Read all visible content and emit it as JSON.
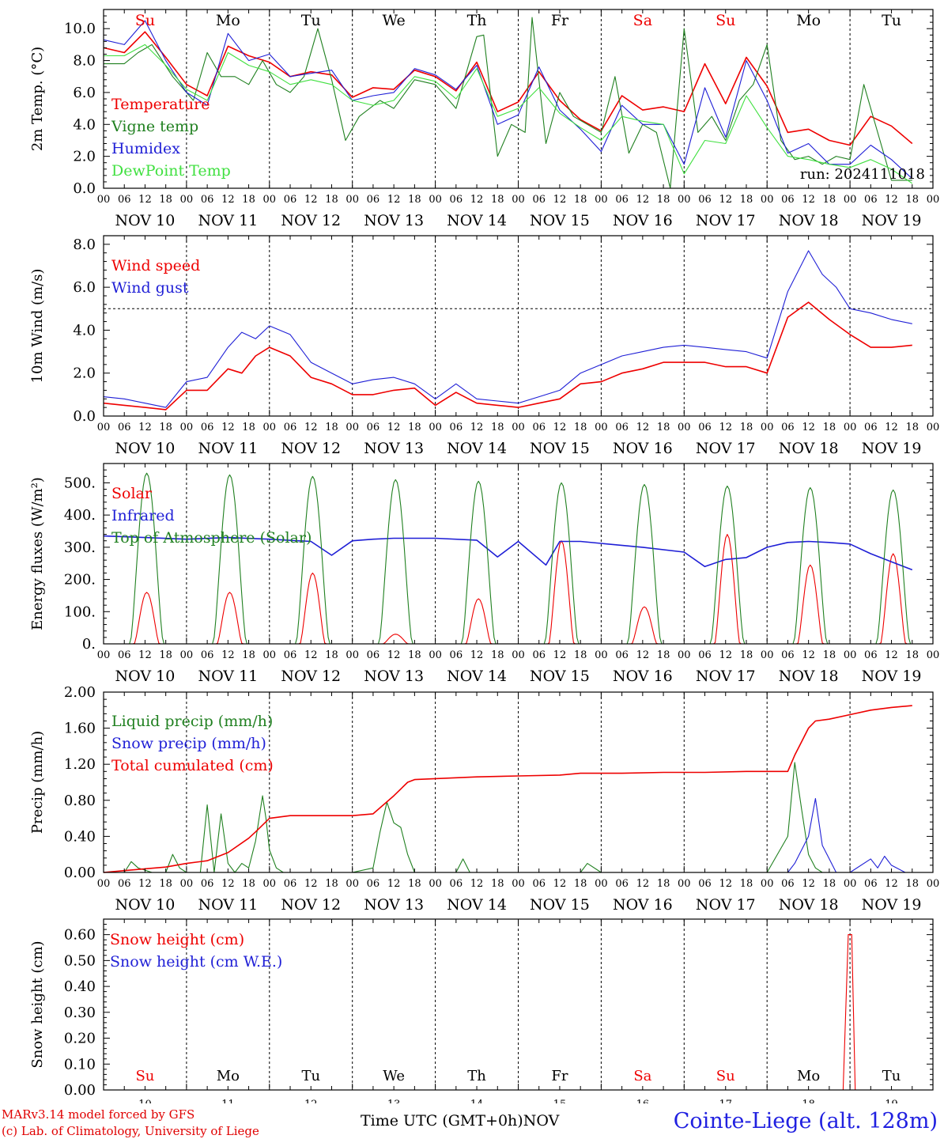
{
  "chart_data": [
    {
      "type": "line",
      "ylabel": "2m Temp. (°C)",
      "ylim": [
        0,
        11.2
      ],
      "yticks": [
        "0.0",
        "2.0",
        "4.0",
        "6.0",
        "8.0",
        "10.0"
      ],
      "x_unit": "hours since NOV 10 00 UTC",
      "annotation": "run: 2024111018",
      "series": [
        {
          "name": "Temperature",
          "color": "#ee0000",
          "x": [
            0,
            6,
            12,
            18,
            24,
            30,
            36,
            42,
            48,
            54,
            60,
            66,
            72,
            78,
            84,
            90,
            96,
            102,
            108,
            114,
            120,
            126,
            132,
            138,
            144,
            150,
            156,
            162,
            168,
            174,
            180,
            186,
            192,
            198,
            204,
            210,
            216,
            222,
            228,
            234
          ],
          "values": [
            8.8,
            8.5,
            9.8,
            8.2,
            6.5,
            5.8,
            8.9,
            8.3,
            7.9,
            7.0,
            7.3,
            7.1,
            5.7,
            6.3,
            6.2,
            7.4,
            7.0,
            6.1,
            7.9,
            4.8,
            5.4,
            7.3,
            5.5,
            4.3,
            3.6,
            5.8,
            4.9,
            5.1,
            4.8,
            7.8,
            5.3,
            8.2,
            6.4,
            3.5,
            3.7,
            3.0,
            2.7,
            4.5,
            3.9,
            2.8
          ]
        },
        {
          "name": "Vigne temp",
          "color": "#208020",
          "x": [
            0,
            6,
            10,
            14,
            20,
            26,
            30,
            34,
            38,
            42,
            46,
            50,
            54,
            58,
            62,
            66,
            70,
            74,
            80,
            84,
            90,
            96,
            102,
            108,
            110,
            114,
            118,
            122,
            124,
            128,
            132,
            136,
            140,
            144,
            148,
            152,
            156,
            160,
            164,
            168,
            172,
            176,
            180,
            184,
            188,
            192,
            196,
            200,
            204,
            208,
            212,
            216,
            220,
            224,
            228,
            234
          ],
          "values": [
            7.8,
            7.8,
            8.5,
            9.0,
            7.0,
            5.5,
            8.5,
            7.0,
            7.0,
            6.5,
            8.0,
            6.5,
            6.0,
            7.0,
            10.0,
            6.8,
            3.0,
            4.5,
            5.5,
            5.0,
            6.8,
            6.5,
            5.0,
            9.5,
            9.6,
            2.0,
            4.0,
            3.5,
            10.7,
            2.8,
            6.0,
            4.5,
            4.0,
            3.5,
            7.0,
            2.2,
            4.0,
            3.5,
            0.0,
            10.0,
            3.5,
            4.5,
            3.0,
            5.5,
            6.5,
            9.0,
            3.0,
            1.8,
            2.0,
            1.5,
            2.0,
            1.8,
            6.5,
            3.5,
            0.5,
            0.5
          ]
        },
        {
          "name": "Humidex",
          "color": "#1f1fd6",
          "x": [
            0,
            6,
            12,
            18,
            24,
            30,
            36,
            42,
            48,
            54,
            60,
            66,
            72,
            78,
            84,
            90,
            96,
            102,
            108,
            114,
            120,
            126,
            132,
            138,
            144,
            150,
            156,
            162,
            168,
            174,
            180,
            186,
            192,
            198,
            204,
            210,
            216,
            222,
            228,
            234
          ],
          "values": [
            9.3,
            9.0,
            10.5,
            8.0,
            6.0,
            5.2,
            9.7,
            8.0,
            8.4,
            7.0,
            7.2,
            7.4,
            5.5,
            5.8,
            6.0,
            7.5,
            7.1,
            6.2,
            7.7,
            4.0,
            4.6,
            7.6,
            4.9,
            3.7,
            2.3,
            5.2,
            4.0,
            4.0,
            1.5,
            6.3,
            3.2,
            8.0,
            5.5,
            2.2,
            2.8,
            1.5,
            1.5,
            2.7,
            1.8,
            0.6
          ]
        },
        {
          "name": "DewPoint Temp",
          "color": "#40e040",
          "x": [
            0,
            6,
            12,
            18,
            24,
            30,
            36,
            42,
            48,
            54,
            60,
            66,
            72,
            78,
            84,
            90,
            96,
            102,
            108,
            114,
            120,
            126,
            132,
            138,
            144,
            150,
            156,
            162,
            168,
            174,
            180,
            186,
            192,
            198,
            204,
            210,
            216,
            222,
            228,
            234
          ],
          "values": [
            8.3,
            8.3,
            9.0,
            7.7,
            6.2,
            5.5,
            8.5,
            7.7,
            7.3,
            6.5,
            6.8,
            6.5,
            5.5,
            5.2,
            5.5,
            7.0,
            6.7,
            5.6,
            7.5,
            4.5,
            5.0,
            6.3,
            4.7,
            3.8,
            3.0,
            4.5,
            4.2,
            4.0,
            0.9,
            3.0,
            2.8,
            5.8,
            3.8,
            2.0,
            1.8,
            1.5,
            1.3,
            1.8,
            1.2,
            0.3
          ]
        }
      ]
    },
    {
      "type": "line",
      "ylabel": "10m Wind (m/s)",
      "ylim": [
        0,
        8.4
      ],
      "yticks": [
        "0.0",
        "2.0",
        "4.0",
        "6.0",
        "8.0"
      ],
      "x_unit": "hours since NOV 10 00 UTC",
      "reference_line": 5.0,
      "series": [
        {
          "name": "Wind speed",
          "color": "#ee0000",
          "x": [
            0,
            6,
            12,
            18,
            24,
            30,
            36,
            40,
            44,
            48,
            54,
            60,
            66,
            72,
            78,
            84,
            90,
            96,
            102,
            108,
            114,
            120,
            126,
            132,
            138,
            144,
            150,
            156,
            162,
            168,
            174,
            180,
            186,
            192,
            198,
            204,
            210,
            216,
            222,
            228,
            234
          ],
          "values": [
            0.6,
            0.5,
            0.4,
            0.3,
            1.2,
            1.2,
            2.2,
            2.0,
            2.8,
            3.2,
            2.8,
            1.8,
            1.5,
            1.0,
            1.0,
            1.2,
            1.3,
            0.5,
            1.1,
            0.6,
            0.5,
            0.4,
            0.6,
            0.8,
            1.5,
            1.6,
            2.0,
            2.2,
            2.5,
            2.5,
            2.5,
            2.3,
            2.3,
            2.0,
            4.6,
            5.3,
            4.5,
            3.8,
            3.2,
            3.2,
            3.3
          ]
        },
        {
          "name": "Wind gust",
          "color": "#1f1fd6",
          "x": [
            0,
            6,
            12,
            18,
            24,
            30,
            36,
            40,
            44,
            48,
            54,
            60,
            66,
            72,
            78,
            84,
            90,
            96,
            102,
            108,
            114,
            120,
            126,
            132,
            138,
            144,
            150,
            156,
            162,
            168,
            174,
            180,
            186,
            192,
            198,
            204,
            208,
            212,
            216,
            222,
            228,
            234
          ],
          "values": [
            0.9,
            0.8,
            0.6,
            0.4,
            1.6,
            1.8,
            3.2,
            3.9,
            3.6,
            4.2,
            3.8,
            2.5,
            2.0,
            1.5,
            1.7,
            1.8,
            1.5,
            0.8,
            1.5,
            0.8,
            0.7,
            0.6,
            0.9,
            1.2,
            2.0,
            2.4,
            2.8,
            3.0,
            3.2,
            3.3,
            3.2,
            3.1,
            3.0,
            2.7,
            5.8,
            7.7,
            6.6,
            6.0,
            5.0,
            4.8,
            4.5,
            4.3
          ]
        }
      ]
    },
    {
      "type": "line",
      "ylabel": "Energy fluxes (W/m²)",
      "ylim": [
        0,
        560
      ],
      "yticks": [
        "0.",
        "100.",
        "200.",
        "300.",
        "400.",
        "500."
      ],
      "x_unit": "hours since NOV 10 00 UTC",
      "day_peaks": {
        "day": [
          10,
          11,
          12,
          13,
          14,
          15,
          16,
          17,
          18,
          19
        ],
        "solar_peak": [
          160,
          160,
          220,
          30,
          140,
          320,
          115,
          340,
          245,
          280
        ],
        "toa_peak": [
          530,
          525,
          520,
          510,
          505,
          500,
          495,
          490,
          485,
          478
        ]
      },
      "series": [
        {
          "name": "Solar",
          "color": "#ee0000"
        },
        {
          "name": "Infrared",
          "color": "#1f1fd6",
          "x": [
            0,
            12,
            24,
            36,
            48,
            60,
            66,
            72,
            78,
            84,
            96,
            108,
            114,
            120,
            128,
            132,
            138,
            144,
            156,
            168,
            174,
            180,
            186,
            192,
            198,
            204,
            210,
            216,
            222,
            228,
            234
          ],
          "values": [
            335,
            330,
            325,
            330,
            325,
            318,
            275,
            320,
            325,
            328,
            328,
            322,
            270,
            318,
            245,
            318,
            318,
            312,
            300,
            285,
            240,
            262,
            268,
            300,
            315,
            318,
            315,
            310,
            280,
            255,
            230
          ]
        },
        {
          "name": "Top of Atmosphere (Solar)",
          "color": "#208020"
        }
      ]
    },
    {
      "type": "line",
      "ylabel": "Precip (mm/h)",
      "ylim": [
        0,
        2.0
      ],
      "yticks": [
        "0.00",
        "0.40",
        "0.80",
        "1.20",
        "1.60",
        "2.00"
      ],
      "x_unit": "hours since NOV 10 00 UTC",
      "series": [
        {
          "name": "Liquid precip (mm/h)",
          "color": "#208020",
          "x": [
            0,
            6,
            8,
            10,
            14,
            18,
            20,
            22,
            24,
            28,
            30,
            32,
            34,
            36,
            38,
            40,
            42,
            44,
            46,
            47,
            48,
            50,
            52,
            54,
            60,
            72,
            78,
            80,
            82,
            84,
            86,
            88,
            90,
            96,
            102,
            104,
            106,
            120,
            132,
            138,
            140,
            144,
            156,
            168,
            180,
            192,
            198,
            200,
            202,
            204,
            206,
            208,
            210,
            216,
            234
          ],
          "values": [
            0,
            0,
            0.12,
            0.05,
            0,
            0,
            0.2,
            0.05,
            0,
            0,
            0.75,
            0,
            0.65,
            0.1,
            0,
            0.1,
            0.05,
            0.35,
            0.85,
            0.6,
            0.25,
            0.05,
            0,
            0,
            0,
            0,
            0.05,
            0.45,
            0.78,
            0.55,
            0.5,
            0.2,
            0,
            0,
            0,
            0.15,
            0,
            0,
            0,
            0,
            0.1,
            0,
            0,
            0,
            0,
            0,
            0.4,
            1.22,
            0.7,
            0.2,
            0.05,
            0,
            0,
            0,
            0
          ]
        },
        {
          "name": "Snow precip (mm/h)",
          "color": "#1f1fd6",
          "x": [
            0,
            196,
            198,
            200,
            202,
            204,
            206,
            208,
            210,
            212,
            214,
            216,
            222,
            224,
            226,
            228,
            232,
            234
          ],
          "values": [
            0,
            0,
            0,
            0.1,
            0.25,
            0.4,
            0.82,
            0.3,
            0.15,
            0,
            0,
            0,
            0.15,
            0.05,
            0.18,
            0.08,
            0,
            0
          ]
        },
        {
          "name": "Total cumulated (cm)",
          "color": "#ee0000",
          "x": [
            0,
            6,
            12,
            18,
            24,
            30,
            36,
            42,
            44,
            48,
            54,
            60,
            66,
            72,
            78,
            84,
            88,
            90,
            96,
            108,
            120,
            132,
            138,
            150,
            162,
            174,
            186,
            198,
            200,
            202,
            204,
            206,
            210,
            216,
            222,
            228,
            234
          ],
          "values": [
            0,
            0.02,
            0.04,
            0.06,
            0.1,
            0.13,
            0.22,
            0.38,
            0.45,
            0.6,
            0.63,
            0.63,
            0.63,
            0.63,
            0.65,
            0.85,
            1.0,
            1.03,
            1.04,
            1.06,
            1.07,
            1.08,
            1.1,
            1.1,
            1.11,
            1.11,
            1.12,
            1.12,
            1.3,
            1.45,
            1.6,
            1.68,
            1.7,
            1.75,
            1.8,
            1.83,
            1.85
          ]
        }
      ]
    },
    {
      "type": "line",
      "ylabel": "Snow height (cm)",
      "ylim": [
        0,
        0.66
      ],
      "yticks": [
        "0.00",
        "0.10",
        "0.20",
        "0.30",
        "0.40",
        "0.50",
        "0.60"
      ],
      "x_unit": "hours since NOV 10 00 UTC",
      "series": [
        {
          "name": "Snow height (cm)",
          "color": "#ee0000",
          "x": [
            0,
            214,
            215.5,
            216.5,
            217.5,
            234
          ],
          "values": [
            0,
            0,
            0.6,
            0.6,
            0,
            0
          ]
        },
        {
          "name": "Snow height (cm W.E.)",
          "color": "#1f1fd6",
          "x": [
            0,
            234
          ],
          "values": [
            0,
            0
          ]
        }
      ]
    }
  ],
  "days": {
    "abbr": [
      "Su",
      "Mo",
      "Tu",
      "We",
      "Th",
      "Fr",
      "Sa",
      "Su",
      "Mo",
      "Tu"
    ],
    "date_labels": [
      "NOV 10",
      "NOV 11",
      "NOV 12",
      "NOV 13",
      "NOV 14",
      "NOV 15",
      "NOV 16",
      "NOV 17",
      "NOV 18",
      "NOV 19"
    ],
    "numbers": [
      "10",
      "11",
      "12",
      "13",
      "14",
      "15",
      "16",
      "17",
      "18",
      "19"
    ]
  },
  "hour_ticks": [
    "00",
    "06",
    "12",
    "18"
  ],
  "colors": {
    "weekend": "#ee0000",
    "weekday": "#000000",
    "snow_day_color": "#ee0000"
  },
  "footer": {
    "credit1": "MARv3.14 model forced by GFS",
    "credit2": "(c) Lab. of Climatology, University of Liege",
    "time_label": "Time UTC (GMT+0h)",
    "month": "NOV",
    "station": "Cointe-Liege (alt. 128m)"
  }
}
